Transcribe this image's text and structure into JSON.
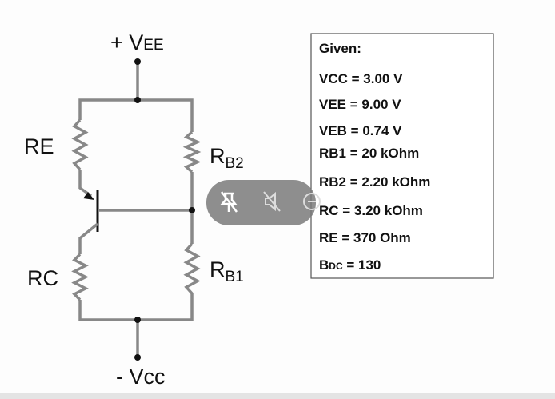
{
  "circuit": {
    "supply_top": {
      "prefix": "+ V",
      "sub": "EE"
    },
    "supply_bottom": "- Vcc",
    "re": "RE",
    "rc": "RC",
    "rb2": {
      "main": "R",
      "sub": "B2"
    },
    "rb1": {
      "main": "R",
      "sub": "B1"
    }
  },
  "given": {
    "title": "Given:",
    "lines": [
      "VCC = 3.00 V",
      "VEE = 9.00 V",
      "VEB = 0.74 V",
      "RB1 = 20 kOhm",
      "RB2 = 2.20 kOhm",
      "RC = 3.20 kOhm",
      "RE = 370 Ohm"
    ],
    "beta": {
      "main": "B",
      "sub": "DC",
      "rest": " = 130"
    }
  }
}
